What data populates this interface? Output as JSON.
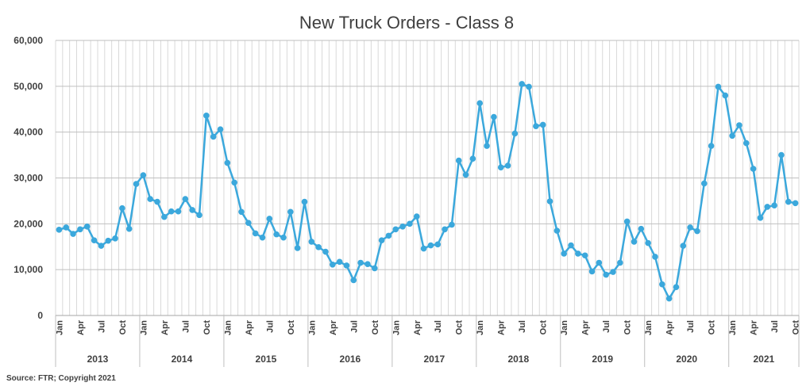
{
  "chart_data": {
    "type": "line",
    "title": "New Truck Orders - Class 8",
    "xlabel": "",
    "ylabel": "",
    "ylim": [
      0,
      60000
    ],
    "yticks": [
      "0",
      "10,000",
      "20,000",
      "30,000",
      "40,000",
      "50,000",
      "60,000"
    ],
    "ytick_values": [
      0,
      10000,
      20000,
      30000,
      40000,
      50000,
      60000
    ],
    "grid": "vertical-monthly and horizontal-major",
    "month_tick_labels": [
      "Jan",
      "Apr",
      "Jul",
      "Oct"
    ],
    "years": [
      "2013",
      "2014",
      "2015",
      "2016",
      "2017",
      "2018",
      "2019",
      "2020",
      "2021"
    ],
    "source": "Source: FTR; Copyright 2021",
    "line_color": "#3BA8DC",
    "series": [
      {
        "values": [
          18700,
          19200,
          17800,
          18800,
          19400,
          16400,
          15200,
          16300,
          16800,
          23400,
          18900,
          28700,
          30600,
          25400,
          24800,
          21500,
          22700,
          22700,
          25400,
          23000,
          21900,
          43600,
          39000,
          40600,
          33300,
          29000,
          22600,
          20200,
          17900,
          17000,
          21100,
          17700,
          17000,
          22600,
          14700,
          24800,
          16100,
          14900,
          13900,
          11100,
          11700,
          10900,
          7700,
          11500,
          11200,
          10300,
          16400,
          17400,
          18800,
          19400,
          20000,
          21600,
          14600,
          15300,
          15500,
          18800,
          19800,
          33800,
          30700,
          34200,
          46300,
          37000,
          43300,
          32300,
          32700,
          39700,
          50500,
          49900,
          41300,
          41600,
          24900,
          18500,
          13500,
          15300,
          13500,
          13100,
          9600,
          11500,
          8900,
          9500,
          11500,
          20500,
          16100,
          18900,
          15800,
          12800,
          6800,
          3700,
          6200,
          15200,
          19200,
          18400,
          28800,
          37000,
          49900,
          48000,
          39200,
          41500,
          37600,
          32000,
          21300,
          23700,
          24000,
          35000,
          24800,
          24500
        ]
      }
    ]
  }
}
